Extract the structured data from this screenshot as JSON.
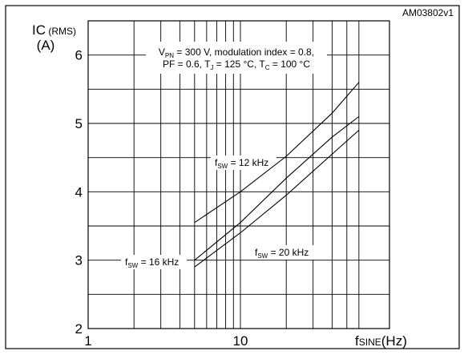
{
  "chart_data": {
    "type": "line",
    "figure_id": "AM03802v1",
    "x_scale": "log",
    "xlim": [
      1,
      60
    ],
    "ylim": [
      2,
      6.5
    ],
    "grid": true,
    "xticks": [
      "1",
      "10"
    ],
    "yticks": [
      "2",
      "3",
      "4",
      "5",
      "6"
    ],
    "ylabel_main": "IC",
    "ylabel_sub": "(RMS)",
    "ylabel_unit": "(A)",
    "xlabel_main": "f",
    "xlabel_sub": "SINE",
    "xlabel_unit": "(Hz)",
    "conditions": {
      "line1": "VPN = 300 V, modulation index = 0.8,",
      "line2": "PF = 0.6, TJ = 125 °C, TC = 100 °C"
    },
    "series": [
      {
        "name": "fSW = 12 kHz",
        "label_main": "f",
        "label_sub": "SW",
        "label_rest": " = 12 kHz",
        "x": [
          5,
          10,
          20,
          40,
          60
        ],
        "y": [
          3.55,
          4.0,
          4.52,
          5.15,
          5.6
        ]
      },
      {
        "name": "fSW = 16 kHz",
        "label_main": "f",
        "label_sub": "SW",
        "label_rest": " = 16 kHz",
        "x": [
          5,
          10,
          20,
          40,
          60
        ],
        "y": [
          3.0,
          3.55,
          4.2,
          4.8,
          5.1
        ]
      },
      {
        "name": "fSW = 20 kHz",
        "label_main": "f",
        "label_sub": "SW",
        "label_rest": " = 20 kHz",
        "x": [
          5,
          10,
          20,
          40,
          60
        ],
        "y": [
          2.9,
          3.4,
          3.95,
          4.55,
          4.9
        ]
      }
    ]
  },
  "styles": {
    "line_color": "#000000",
    "background": "#ffffff"
  }
}
